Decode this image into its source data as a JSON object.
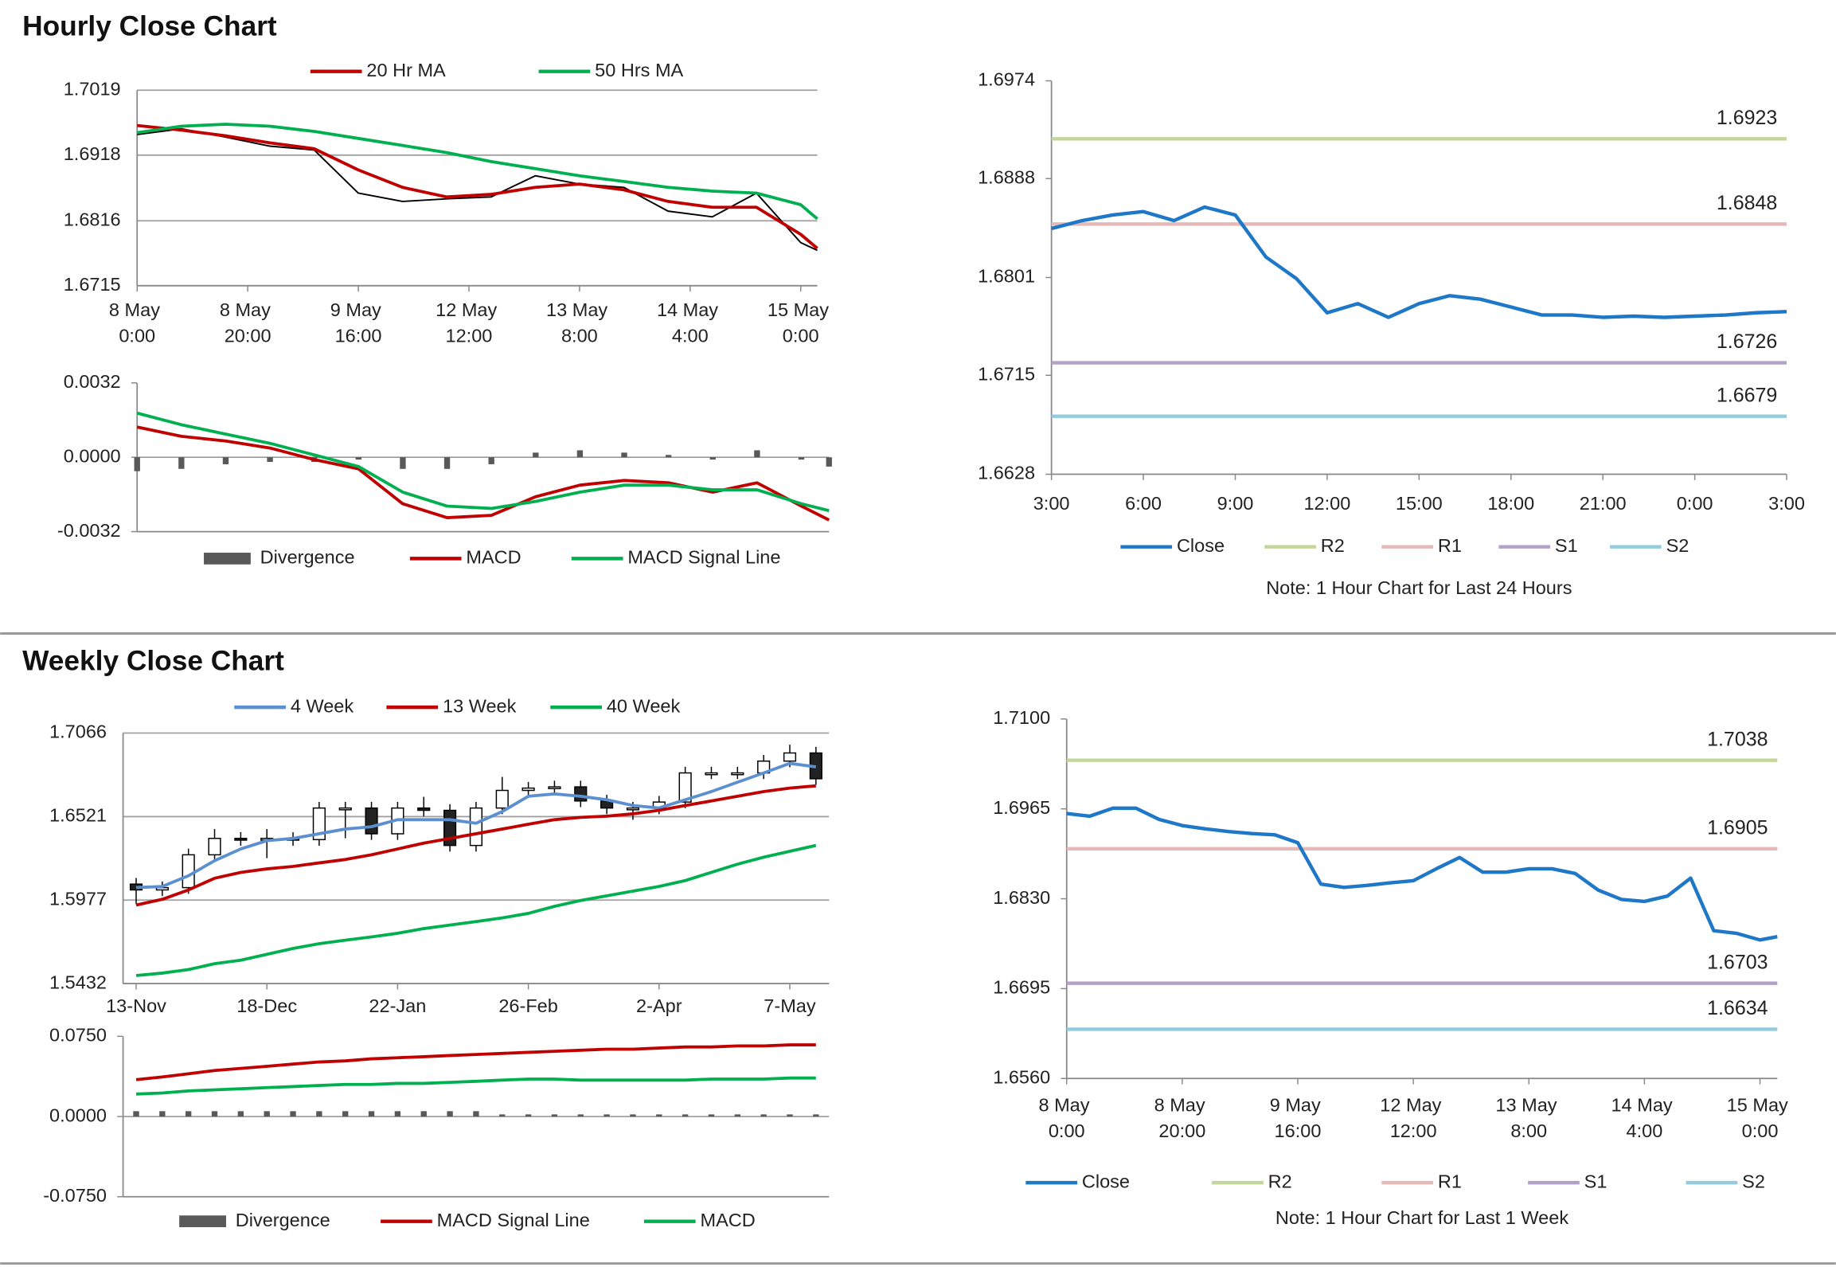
{
  "sections": [
    {
      "title": "Hourly Close Chart"
    },
    {
      "title": "Weekly Close Chart"
    }
  ],
  "chart_data": [
    {
      "type": "line",
      "x": [
        0,
        8,
        16,
        24,
        32,
        40,
        48,
        56,
        64,
        72,
        80,
        88,
        96,
        104,
        112,
        120,
        123
      ],
      "xlim": [
        0,
        123
      ],
      "xticks": [
        {
          "value": 0,
          "label": "8 May 0:00"
        },
        {
          "value": 20,
          "label": "8 May 20:00"
        },
        {
          "value": 40,
          "label": "9 May 16:00"
        },
        {
          "value": 60,
          "label": "12 May 12:00"
        },
        {
          "value": 80,
          "label": "13 May 8:00"
        },
        {
          "value": 100,
          "label": "14 May 4:00"
        },
        {
          "value": 120,
          "label": "15 May 0:00"
        }
      ],
      "ylim": [
        1.6715,
        1.7019
      ],
      "yticks": [
        1.6715,
        1.6816,
        1.6918,
        1.7019
      ],
      "grid": true,
      "price": {
        "color": "#000000",
        "values": [
          1.695,
          1.6959,
          1.6946,
          1.6932,
          1.6926,
          1.6859,
          1.6846,
          1.685,
          1.6853,
          1.6886,
          1.6873,
          1.6868,
          1.6831,
          1.6822,
          1.6859,
          1.6782,
          1.677
        ]
      },
      "series": [
        {
          "name": "20 Hr MA",
          "color": "#c00000",
          "values": [
            1.6964,
            1.6957,
            1.6948,
            1.6937,
            1.6928,
            1.6895,
            1.6868,
            1.6853,
            1.6857,
            1.6868,
            1.6873,
            1.6864,
            1.6846,
            1.6837,
            1.6837,
            1.6795,
            1.6773
          ]
        },
        {
          "name": "50 Hrs MA",
          "color": "#00b050",
          "values": [
            1.6953,
            1.6963,
            1.6966,
            1.6963,
            1.6955,
            1.6944,
            1.6933,
            1.6922,
            1.6908,
            1.6897,
            1.6886,
            1.6877,
            1.6868,
            1.6862,
            1.6859,
            1.6841,
            1.6819
          ]
        }
      ]
    },
    {
      "type": "macd",
      "x": [
        0,
        8,
        16,
        24,
        32,
        40,
        48,
        56,
        64,
        72,
        80,
        88,
        96,
        104,
        112,
        120,
        125
      ],
      "xlim": [
        0,
        125
      ],
      "ylim": [
        -0.0032,
        0.0032
      ],
      "yticks": [
        -0.0032,
        {
          "value": 0,
          "label": "0.0000"
        },
        0.0032
      ],
      "grid": false,
      "series": [
        {
          "name": "Divergence",
          "style": "bar",
          "color": "#595959",
          "values": [
            -0.0006,
            -0.0005,
            -0.0003,
            -0.0002,
            -0.0002,
            -0.0001,
            -0.0005,
            -0.0005,
            -0.0003,
            0.0002,
            0.0003,
            0.0002,
            0.0001,
            -0.0001,
            0.0003,
            -0.0001,
            -0.0004
          ]
        },
        {
          "name": "MACD",
          "style": "line",
          "color": "#c00000",
          "values": [
            0.0013,
            0.0009,
            0.0007,
            0.0004,
            -0.0001,
            -0.0005,
            -0.002,
            -0.0026,
            -0.0025,
            -0.0017,
            -0.0012,
            -0.001,
            -0.0011,
            -0.0015,
            -0.0011,
            -0.0021,
            -0.0027
          ]
        },
        {
          "name": "MACD Signal Line",
          "style": "line",
          "color": "#00b050",
          "values": [
            0.0019,
            0.0014,
            0.001,
            0.0006,
            0.0001,
            -0.0004,
            -0.0015,
            -0.0021,
            -0.0022,
            -0.0019,
            -0.0015,
            -0.0012,
            -0.0012,
            -0.0014,
            -0.0014,
            -0.002,
            -0.0023
          ]
        }
      ]
    },
    {
      "type": "line",
      "categories": [
        "3:00",
        null,
        null,
        "6:00",
        null,
        null,
        "9:00",
        null,
        null,
        "12:00",
        null,
        null,
        "15:00",
        null,
        null,
        "18:00",
        null,
        null,
        "21:00",
        null,
        null,
        "0:00",
        null,
        null,
        "3:00"
      ],
      "ylim": [
        1.6628,
        1.6974
      ],
      "yticks": [
        1.6628,
        1.6715,
        1.6801,
        1.6888,
        1.6974
      ],
      "grid": false,
      "series": [
        {
          "name": "Close",
          "color": "#1f77c8",
          "values": [
            1.6844,
            1.6851,
            1.6856,
            1.6859,
            1.6851,
            1.6863,
            1.6856,
            1.6819,
            1.68,
            1.677,
            1.6778,
            1.6766,
            1.6778,
            1.6785,
            1.6782,
            1.6775,
            1.6768,
            1.6768,
            1.6766,
            1.6767,
            1.6766,
            1.6767,
            1.6768,
            1.677,
            1.6771
          ]
        }
      ],
      "levels": [
        {
          "name": "R2",
          "color": "#c3d69b",
          "value": 1.6923
        },
        {
          "name": "R1",
          "color": "#e6b9b8",
          "value": 1.6848
        },
        {
          "name": "S1",
          "color": "#b3a2c7",
          "value": 1.6726
        },
        {
          "name": "S2",
          "color": "#93cddd",
          "value": 1.6679
        }
      ],
      "note": "Note: 1 Hour Chart for Last 24 Hours"
    },
    {
      "type": "candlestick",
      "categories": [
        "13-Nov",
        null,
        null,
        null,
        null,
        "18-Dec",
        null,
        null,
        null,
        null,
        "22-Jan",
        null,
        null,
        null,
        null,
        "26-Feb",
        null,
        null,
        null,
        null,
        "2-Apr",
        null,
        null,
        null,
        null,
        "7-May",
        null
      ],
      "ylim": [
        1.5432,
        1.7066
      ],
      "yticks": [
        1.5432,
        1.5977,
        1.6521,
        1.7066
      ],
      "grid": true,
      "open": [
        1.6081,
        1.6043,
        1.6058,
        1.6272,
        1.6379,
        1.6371,
        1.6379,
        1.6371,
        1.6577,
        1.6577,
        1.6409,
        1.6577,
        1.6562,
        1.6333,
        1.6577,
        1.6692,
        1.6707,
        1.6715,
        1.6623,
        1.6577,
        1.6577,
        1.6616,
        1.6806,
        1.6806,
        1.6806,
        1.6883,
        1.6936
      ],
      "high": [
        1.6121,
        1.6098,
        1.6312,
        1.644,
        1.642,
        1.644,
        1.6419,
        1.6617,
        1.6617,
        1.6617,
        1.6617,
        1.665,
        1.6602,
        1.6617,
        1.678,
        1.6747,
        1.6755,
        1.6755,
        1.6663,
        1.6617,
        1.6656,
        1.6846,
        1.6846,
        1.6846,
        1.6923,
        1.699,
        1.6976
      ],
      "low": [
        1.595,
        1.6003,
        1.6018,
        1.6232,
        1.6331,
        1.625,
        1.6331,
        1.6331,
        1.638,
        1.6369,
        1.6369,
        1.6522,
        1.6293,
        1.6293,
        1.6537,
        1.6652,
        1.6667,
        1.6583,
        1.6537,
        1.65,
        1.6537,
        1.6576,
        1.6766,
        1.6766,
        1.6766,
        1.6843,
        1.6728
      ],
      "close": [
        1.6043,
        1.6058,
        1.6272,
        1.6379,
        1.6371,
        1.6379,
        1.6371,
        1.6577,
        1.6577,
        1.6409,
        1.6577,
        1.6562,
        1.6333,
        1.6577,
        1.6692,
        1.6707,
        1.6715,
        1.6623,
        1.6577,
        1.6577,
        1.6616,
        1.6806,
        1.6806,
        1.6806,
        1.6883,
        1.6936,
        1.6768
      ],
      "series": [
        {
          "name": "4 Week",
          "color": "#5b8fd0",
          "values": [
            1.6058,
            1.6066,
            1.6135,
            1.6234,
            1.631,
            1.6364,
            1.6379,
            1.6409,
            1.644,
            1.6455,
            1.6501,
            1.6501,
            1.6501,
            1.6478,
            1.6554,
            1.6654,
            1.6669,
            1.6654,
            1.6631,
            1.6593,
            1.6577,
            1.6631,
            1.6684,
            1.6745,
            1.6806,
            1.6868,
            1.6845
          ]
        },
        {
          "name": "13 Week",
          "color": "#c00000",
          "values": [
            1.5944,
            1.5982,
            1.6043,
            1.6119,
            1.6157,
            1.618,
            1.6196,
            1.6219,
            1.6241,
            1.6272,
            1.631,
            1.6348,
            1.6379,
            1.6409,
            1.644,
            1.6471,
            1.6501,
            1.6516,
            1.6524,
            1.6539,
            1.6562,
            1.6593,
            1.6623,
            1.6654,
            1.6684,
            1.6707,
            1.6722
          ]
        },
        {
          "name": "40 Week",
          "color": "#00b050",
          "values": [
            1.5485,
            1.5501,
            1.5524,
            1.5562,
            1.5585,
            1.5623,
            1.5661,
            1.5692,
            1.5715,
            1.5737,
            1.576,
            1.5791,
            1.5814,
            1.5837,
            1.586,
            1.589,
            1.5936,
            1.5974,
            1.6005,
            1.6035,
            1.6066,
            1.6104,
            1.6157,
            1.6211,
            1.6257,
            1.6295,
            1.6333
          ]
        }
      ]
    },
    {
      "type": "macd",
      "ylim": [
        -0.075,
        0.075
      ],
      "yticks": [
        {
          "value": -0.075,
          "label": "-0.0750"
        },
        {
          "value": 0,
          "label": "0.0000"
        },
        {
          "value": 0.075,
          "label": "0.0750"
        }
      ],
      "grid": false,
      "series": [
        {
          "name": "Divergence",
          "style": "bar",
          "color": "#595959",
          "values": [
            0.005,
            0.005,
            0.005,
            0.005,
            0.005,
            0.005,
            0.005,
            0.005,
            0.005,
            0.005,
            0.005,
            0.005,
            0.005,
            0.005,
            0.002,
            0.002,
            0.002,
            0.002,
            0.002,
            0.002,
            0.002,
            0.002,
            0.002,
            0.002,
            0.002,
            0.002,
            0.002
          ]
        },
        {
          "name": "MACD Signal Line",
          "style": "line",
          "color": "#c00000",
          "values": [
            0.0345,
            0.037,
            0.04,
            0.043,
            0.045,
            0.047,
            0.049,
            0.051,
            0.052,
            0.054,
            0.055,
            0.056,
            0.057,
            0.058,
            0.059,
            0.06,
            0.061,
            0.062,
            0.063,
            0.063,
            0.064,
            0.065,
            0.065,
            0.066,
            0.066,
            0.067,
            0.067
          ]
        },
        {
          "name": "MACD",
          "style": "line",
          "color": "#00b050",
          "values": [
            0.021,
            0.022,
            0.024,
            0.025,
            0.026,
            0.027,
            0.028,
            0.029,
            0.03,
            0.03,
            0.031,
            0.031,
            0.032,
            0.033,
            0.034,
            0.035,
            0.035,
            0.034,
            0.034,
            0.034,
            0.034,
            0.034,
            0.035,
            0.035,
            0.035,
            0.036,
            0.036
          ]
        }
      ]
    },
    {
      "type": "line",
      "x": [
        0,
        4,
        8,
        12,
        16,
        20,
        24,
        28,
        32,
        36,
        40,
        44,
        48,
        52,
        56,
        60,
        64,
        68,
        72,
        76,
        80,
        84,
        88,
        92,
        96,
        100,
        104,
        108,
        112,
        116,
        120,
        123
      ],
      "xlim": [
        0,
        123
      ],
      "xticks": [
        {
          "value": 0,
          "label": "8 May 0:00"
        },
        {
          "value": 20,
          "label": "8 May 20:00"
        },
        {
          "value": 40,
          "label": "9 May 16:00"
        },
        {
          "value": 60,
          "label": "12 May 12:00"
        },
        {
          "value": 80,
          "label": "13 May 8:00"
        },
        {
          "value": 100,
          "label": "14 May 4:00"
        },
        {
          "value": 120,
          "label": "15 May 0:00"
        }
      ],
      "ylim": [
        1.656,
        1.71
      ],
      "yticks": [
        {
          "value": 1.656,
          "label": "1.6560"
        },
        1.6695,
        {
          "value": 1.683,
          "label": "1.6830"
        },
        1.6965,
        {
          "value": 1.71,
          "label": "1.7100"
        }
      ],
      "grid": false,
      "series": [
        {
          "name": "Close",
          "color": "#1f77c8",
          "values": [
            1.6958,
            1.6954,
            1.6966,
            1.6966,
            1.6949,
            1.694,
            1.6935,
            1.6931,
            1.6928,
            1.6926,
            1.6914,
            1.6852,
            1.6847,
            1.685,
            1.6854,
            1.6857,
            1.6875,
            1.6892,
            1.687,
            1.687,
            1.6875,
            1.6875,
            1.6868,
            1.6843,
            1.6829,
            1.6826,
            1.6834,
            1.6861,
            1.6782,
            1.6778,
            1.6768,
            1.6773
          ]
        }
      ],
      "levels": [
        {
          "name": "R2",
          "color": "#c3d69b",
          "value": 1.7038
        },
        {
          "name": "R1",
          "color": "#e6b9b8",
          "value": 1.6905
        },
        {
          "name": "S1",
          "color": "#b3a2c7",
          "value": 1.6703
        },
        {
          "name": "S2",
          "color": "#93cddd",
          "value": 1.6634
        }
      ],
      "note": "Note: 1 Hour Chart for Last 1 Week"
    }
  ]
}
